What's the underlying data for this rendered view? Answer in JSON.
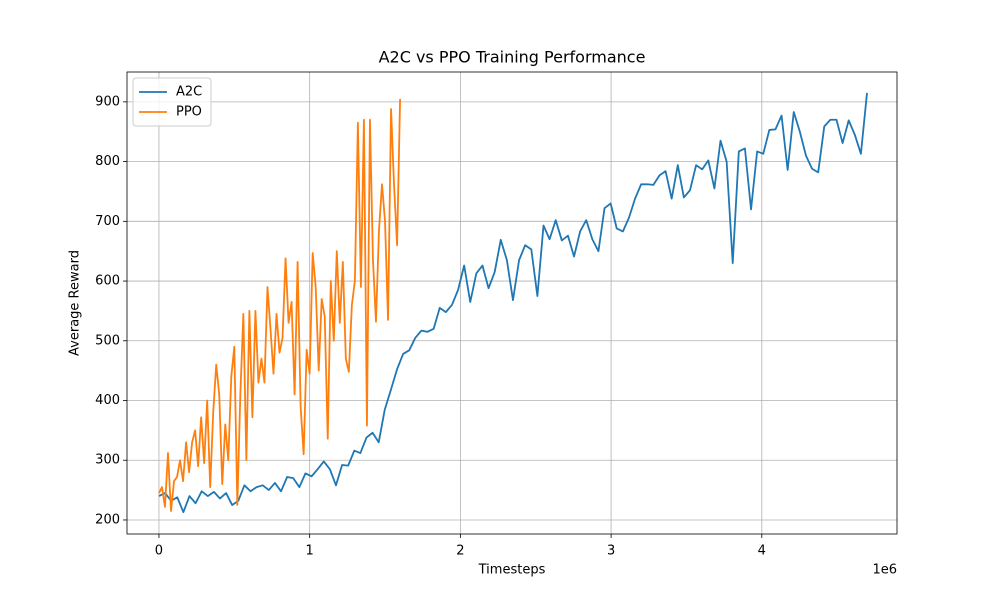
{
  "chart_data": {
    "type": "line",
    "title": "A2C vs PPO Training Performance",
    "x_label": "Timesteps",
    "y_label": "Average Reward",
    "x_offset_label": "1e6",
    "xlim": [
      -212000,
      4897000
    ],
    "ylim": [
      176.5,
      950
    ],
    "xticks": [
      {
        "value": 0,
        "label": "0"
      },
      {
        "value": 1000000,
        "label": "1"
      },
      {
        "value": 2000000,
        "label": "2"
      },
      {
        "value": 3000000,
        "label": "3"
      },
      {
        "value": 4000000,
        "label": "4"
      }
    ],
    "yticks": [
      200,
      300,
      400,
      500,
      600,
      700,
      800,
      900
    ],
    "grid": true,
    "legend": "upper-left",
    "series": [
      {
        "name": "A2C",
        "color": "#1f77b4",
        "x": [
          0,
          40500,
          81000,
          121500,
          162000,
          202500,
          243000,
          283500,
          324000,
          364500,
          405000,
          445500,
          486000,
          526500,
          567000,
          607500,
          648000,
          688500,
          729000,
          769500,
          810000,
          850500,
          891000,
          931500,
          972000,
          1012500,
          1053000,
          1093500,
          1134000,
          1174500,
          1215000,
          1255500,
          1296000,
          1336500,
          1377000,
          1417500,
          1458000,
          1498500,
          1539000,
          1579500,
          1620000,
          1660500,
          1701000,
          1741500,
          1782000,
          1822500,
          1863000,
          1903500,
          1944000,
          1984500,
          2025000,
          2065500,
          2106000,
          2146500,
          2187000,
          2227500,
          2268000,
          2308500,
          2349000,
          2389500,
          2430000,
          2470500,
          2511000,
          2551500,
          2592000,
          2632500,
          2673000,
          2713500,
          2754000,
          2794500,
          2835000,
          2875500,
          2916000,
          2956500,
          2997000,
          3037500,
          3078000,
          3118500,
          3159000,
          3199500,
          3240000,
          3280500,
          3321000,
          3361500,
          3402000,
          3442500,
          3483000,
          3523500,
          3564000,
          3604500,
          3645000,
          3685500,
          3726000,
          3766500,
          3807000,
          3847500,
          3888000,
          3928500,
          3969000,
          4009500,
          4050000,
          4090500,
          4131000,
          4171500,
          4212000,
          4252500,
          4293000,
          4333500,
          4374000,
          4414500,
          4455000,
          4495500,
          4536000,
          4576500,
          4617000,
          4657500,
          4698000
        ],
        "values": [
          240,
          245,
          232,
          238,
          213,
          240,
          228,
          248,
          240,
          247,
          236,
          245,
          225,
          232,
          258,
          248,
          255,
          258,
          250,
          262,
          248,
          272,
          270,
          255,
          278,
          273,
          285,
          298,
          285,
          258,
          292,
          291,
          316,
          312,
          338,
          346,
          330,
          385,
          418,
          452,
          478,
          484,
          505,
          517,
          515,
          520,
          555,
          548,
          560,
          585,
          626,
          565,
          613,
          626,
          588,
          615,
          669,
          635,
          568,
          635,
          660,
          653,
          575,
          693,
          670,
          702,
          668,
          676,
          641,
          683,
          702,
          670,
          650,
          722,
          730,
          688,
          683,
          706,
          738,
          762,
          762,
          761,
          777,
          784,
          738,
          794,
          740,
          752,
          794,
          787,
          802,
          755,
          835,
          800,
          630,
          817,
          822,
          720,
          817,
          813,
          853,
          854,
          877,
          786,
          883,
          850,
          810,
          788,
          782,
          859,
          870,
          870,
          831,
          869,
          845,
          813,
          915
        ]
      },
      {
        "name": "PPO",
        "color": "#ff7f0e",
        "x": [
          0,
          20000,
          40000,
          60000,
          80000,
          100000,
          120000,
          140000,
          160000,
          180000,
          200000,
          220000,
          240000,
          260000,
          280000,
          300000,
          320000,
          340000,
          360000,
          380000,
          400000,
          420000,
          440000,
          460000,
          480000,
          500000,
          520000,
          540000,
          560000,
          580000,
          600000,
          620000,
          640000,
          660000,
          680000,
          700000,
          720000,
          740000,
          760000,
          780000,
          800000,
          820000,
          840000,
          860000,
          880000,
          900000,
          920000,
          940000,
          960000,
          980000,
          1000000,
          1020000,
          1040000,
          1060000,
          1080000,
          1100000,
          1120000,
          1140000,
          1160000,
          1180000,
          1200000,
          1220000,
          1240000,
          1260000,
          1280000,
          1300000,
          1320000,
          1340000,
          1360000,
          1380000,
          1400000,
          1420000,
          1440000,
          1460000,
          1480000,
          1500000,
          1520000,
          1540000,
          1560000,
          1580000,
          1600000
        ],
        "values": [
          245,
          255,
          222,
          312,
          215,
          265,
          272,
          300,
          265,
          330,
          280,
          330,
          350,
          290,
          372,
          295,
          400,
          255,
          380,
          460,
          410,
          260,
          360,
          300,
          440,
          490,
          225,
          410,
          545,
          300,
          550,
          372,
          550,
          430,
          470,
          430,
          590,
          520,
          445,
          545,
          480,
          505,
          638,
          530,
          565,
          410,
          632,
          390,
          310,
          485,
          445,
          647,
          590,
          450,
          570,
          540,
          336,
          600,
          500,
          650,
          530,
          632,
          470,
          448,
          560,
          600,
          865,
          590,
          870,
          358,
          870,
          635,
          532,
          685,
          762,
          700,
          535,
          888,
          760,
          660,
          905
        ]
      }
    ]
  }
}
